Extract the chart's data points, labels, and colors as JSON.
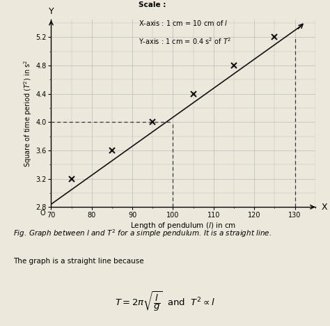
{
  "title": "Graph between $l$ and $T^{2}$ for a simple pendulum",
  "scale_bold": "Scale :",
  "scale_x": "X-axis : 1 cm = 10 cm of $l$",
  "scale_y": "Y-axis : 1 cm = 0.4 s$^{2}$ of $T^{2}$",
  "xlabel": "Length of pendulum ($l$) in cm",
  "ylabel": "Square of time period ($T^{2}$) in s$^{2}$",
  "xlim": [
    70,
    135
  ],
  "ylim": [
    2.8,
    5.45
  ],
  "xticks": [
    70,
    80,
    90,
    100,
    110,
    120,
    130
  ],
  "yticks": [
    2.8,
    3.2,
    3.6,
    4.0,
    4.4,
    4.8,
    5.2
  ],
  "data_points_x": [
    75,
    85,
    95,
    105,
    115,
    125
  ],
  "data_points_y": [
    3.2,
    3.6,
    4.0,
    4.4,
    4.8,
    5.2
  ],
  "line_x": [
    70,
    132
  ],
  "line_y": [
    2.84,
    5.38
  ],
  "bg_color": "#ede8dc",
  "plot_bg_color": "#ede8dc",
  "grid_color": "#bbbbbb",
  "line_color": "#111111",
  "marker_color": "#111111",
  "dashed_color": "#333333",
  "fig_text1": "Fig. Graph between $l$ and $T^{2}$ for a simple pendulum. It is a straight line.",
  "fig_text2": "The graph is a straight line because",
  "fig_formula": "$T = 2\\pi\\sqrt{\\dfrac{l}{g}}$  and  $T^{2} \\propto l$"
}
